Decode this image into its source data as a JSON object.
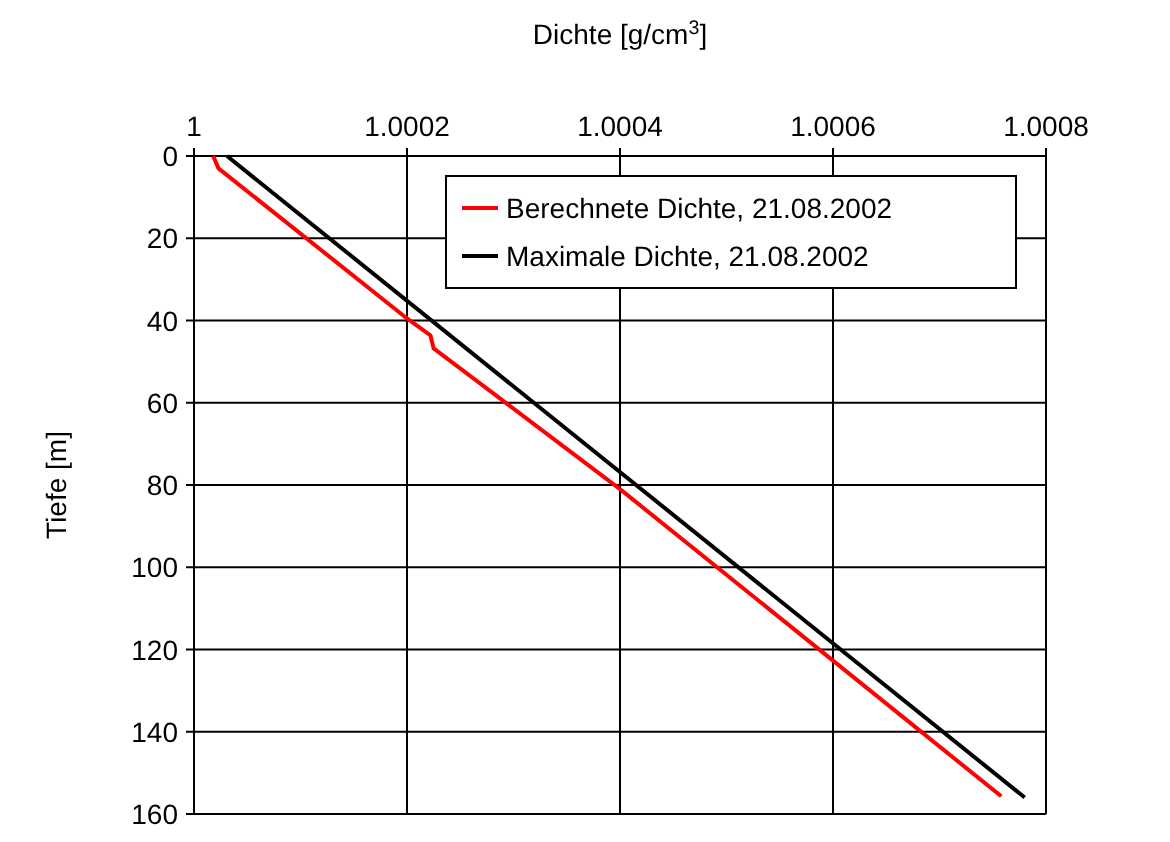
{
  "chart_data": {
    "type": "line",
    "xlabel": "Dichte [g/cm$^{3}$]",
    "ylabel": "Tiefe [m]",
    "xlim": [
      1,
      1.0008
    ],
    "xticks": [
      1,
      1.0002,
      1.0004,
      1.0006,
      1.0008
    ],
    "ylim": [
      160,
      0
    ],
    "yticks": [
      0,
      20,
      40,
      60,
      80,
      100,
      120,
      140,
      160
    ],
    "grid": true,
    "legend": "top right",
    "line_style": "solid",
    "marker": "none",
    "series": [
      {
        "name": "Berechnete Dichte, 21.08.2002",
        "color": "#ff0000",
        "x": [
          1.000018,
          1.000023,
          1.0002,
          1.000222,
          1.000225,
          1.0004,
          1.0006,
          1.000758
        ],
        "values": [
          0,
          3,
          39.5,
          43.6,
          46.8,
          81,
          122.7,
          155.7
        ]
      },
      {
        "name": "Maximale Dichte, 21.08.2002",
        "color": "#000000",
        "x": [
          1.000031,
          1.00078
        ],
        "values": [
          0,
          156
        ]
      }
    ]
  }
}
